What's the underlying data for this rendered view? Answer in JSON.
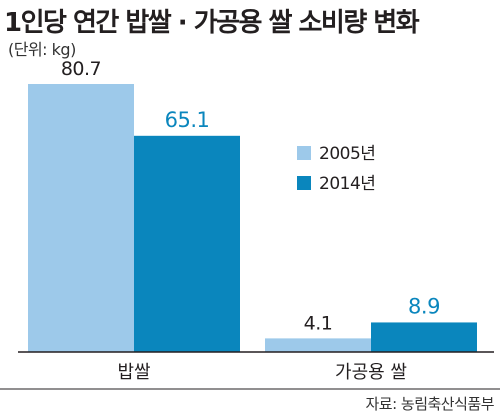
{
  "title": "1인당 연간 밥쌀 · 가공용 쌀 소비량 변화",
  "unit_note": "(단위: kg)",
  "source": "자료: 농림축산식품부",
  "chart_data": {
    "type": "bar",
    "title": "1인당 연간 밥쌀 · 가공용 쌀 소비량 변화",
    "xlabel": "",
    "ylabel": "",
    "unit": "kg",
    "categories": [
      "밥쌀",
      "가공용 쌀"
    ],
    "series": [
      {
        "name": "2005년",
        "values": [
          80.7,
          4.1
        ],
        "color": "#9dc9ea",
        "label_color": "#231f20"
      },
      {
        "name": "2014년",
        "values": [
          65.1,
          8.9
        ],
        "color": "#0a86bd",
        "label_color": "#0a86bd"
      }
    ],
    "data_labels": [
      [
        "80.7",
        "4.1"
      ],
      [
        "65.1",
        "8.9"
      ]
    ],
    "ylim": [
      0,
      80.7
    ],
    "grid": false,
    "legend_position": "middle-right"
  }
}
